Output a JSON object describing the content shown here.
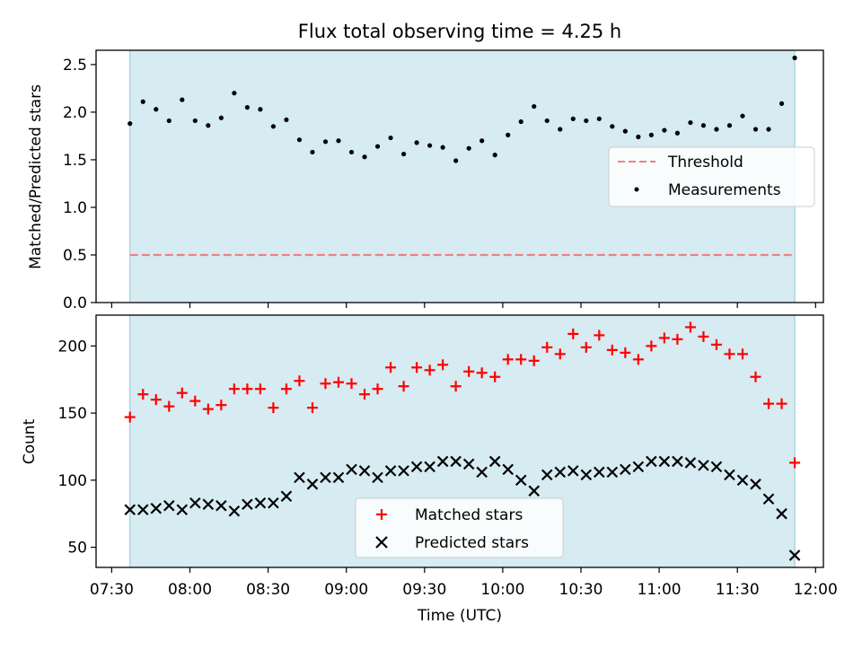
{
  "figure": {
    "title": "Flux total observing time = 4.25 h",
    "xlabel": "Time (UTC)"
  },
  "colors": {
    "observing_span": "#add8e6",
    "threshold": "#f08080",
    "measurements": "#000000",
    "matched": "#ff0000",
    "predicted": "#000000"
  },
  "chart_data": [
    {
      "type": "scatter",
      "ylabel": "Matched/Predicted stars",
      "xlim": [
        "07:24",
        "12:03"
      ],
      "ylim": [
        0,
        2.65
      ],
      "yticks": [
        "0.0",
        "0.5",
        "1.0",
        "1.5",
        "2.0",
        "2.5"
      ],
      "grid": false,
      "shaded_span": [
        "07:37",
        "11:52"
      ],
      "legend": {
        "position": "center-right",
        "entries": [
          "Threshold",
          "Measurements"
        ]
      },
      "threshold": {
        "name": "Threshold",
        "y": 0.5
      },
      "series": [
        {
          "name": "Measurements",
          "x": [
            "07:37",
            "07:42",
            "07:47",
            "07:52",
            "07:57",
            "08:02",
            "08:07",
            "08:12",
            "08:17",
            "08:22",
            "08:27",
            "08:32",
            "08:37",
            "08:42",
            "08:47",
            "08:52",
            "08:57",
            "09:02",
            "09:07",
            "09:12",
            "09:17",
            "09:22",
            "09:27",
            "09:32",
            "09:37",
            "09:42",
            "09:47",
            "09:52",
            "09:57",
            "10:02",
            "10:07",
            "10:12",
            "10:17",
            "10:22",
            "10:27",
            "10:32",
            "10:37",
            "10:42",
            "10:47",
            "10:52",
            "10:57",
            "11:02",
            "11:07",
            "11:12",
            "11:17",
            "11:22",
            "11:27",
            "11:32",
            "11:37",
            "11:42",
            "11:47",
            "11:52"
          ],
          "y": [
            1.88,
            2.11,
            2.03,
            1.91,
            2.13,
            1.91,
            1.86,
            1.94,
            2.2,
            2.05,
            2.03,
            1.85,
            1.92,
            1.71,
            1.58,
            1.69,
            1.7,
            1.58,
            1.53,
            1.64,
            1.73,
            1.56,
            1.68,
            1.65,
            1.63,
            1.49,
            1.62,
            1.7,
            1.55,
            1.76,
            1.9,
            2.06,
            1.91,
            1.82,
            1.93,
            1.91,
            1.93,
            1.85,
            1.8,
            1.74,
            1.76,
            1.81,
            1.78,
            1.89,
            1.86,
            1.82,
            1.86,
            1.96,
            1.82,
            1.82,
            2.09,
            2.57
          ]
        }
      ]
    },
    {
      "type": "scatter",
      "ylabel": "Count",
      "xlim": [
        "07:24",
        "12:03"
      ],
      "ylim": [
        35,
        223
      ],
      "yticks": [
        "50",
        "100",
        "150",
        "200"
      ],
      "xticks": [
        "07:30",
        "08:00",
        "08:30",
        "09:00",
        "09:30",
        "10:00",
        "10:30",
        "11:00",
        "11:30",
        "12:00"
      ],
      "grid": false,
      "shaded_span": [
        "07:37",
        "11:52"
      ],
      "legend": {
        "position": "lower-center",
        "entries": [
          "Matched stars",
          "Predicted stars"
        ]
      },
      "x": [
        "07:37",
        "07:42",
        "07:47",
        "07:52",
        "07:57",
        "08:02",
        "08:07",
        "08:12",
        "08:17",
        "08:22",
        "08:27",
        "08:32",
        "08:37",
        "08:42",
        "08:47",
        "08:52",
        "08:57",
        "09:02",
        "09:07",
        "09:12",
        "09:17",
        "09:22",
        "09:27",
        "09:32",
        "09:37",
        "09:42",
        "09:47",
        "09:52",
        "09:57",
        "10:02",
        "10:07",
        "10:12",
        "10:17",
        "10:22",
        "10:27",
        "10:32",
        "10:37",
        "10:42",
        "10:47",
        "10:52",
        "10:57",
        "11:02",
        "11:07",
        "11:12",
        "11:17",
        "11:22",
        "11:27",
        "11:32",
        "11:37",
        "11:42",
        "11:47",
        "11:52"
      ],
      "series": [
        {
          "name": "Matched stars",
          "marker": "plus",
          "values": [
            147,
            164,
            160,
            155,
            165,
            159,
            153,
            156,
            168,
            168,
            168,
            154,
            168,
            174,
            154,
            172,
            173,
            172,
            164,
            168,
            184,
            170,
            184,
            182,
            186,
            170,
            181,
            180,
            177,
            190,
            190,
            189,
            199,
            194,
            209,
            199,
            208,
            197,
            195,
            190,
            200,
            206,
            205,
            214,
            207,
            201,
            194,
            194,
            177,
            157,
            157,
            113
          ]
        },
        {
          "name": "Predicted stars",
          "marker": "x",
          "values": [
            78,
            78,
            79,
            81,
            78,
            83,
            82,
            81,
            77,
            82,
            83,
            83,
            88,
            102,
            97,
            102,
            102,
            108,
            107,
            102,
            107,
            107,
            110,
            110,
            114,
            114,
            112,
            106,
            114,
            108,
            100,
            92,
            104,
            106,
            107,
            104,
            106,
            106,
            108,
            110,
            114,
            114,
            114,
            113,
            111,
            110,
            104,
            100,
            97,
            86,
            75,
            44
          ]
        }
      ]
    }
  ]
}
